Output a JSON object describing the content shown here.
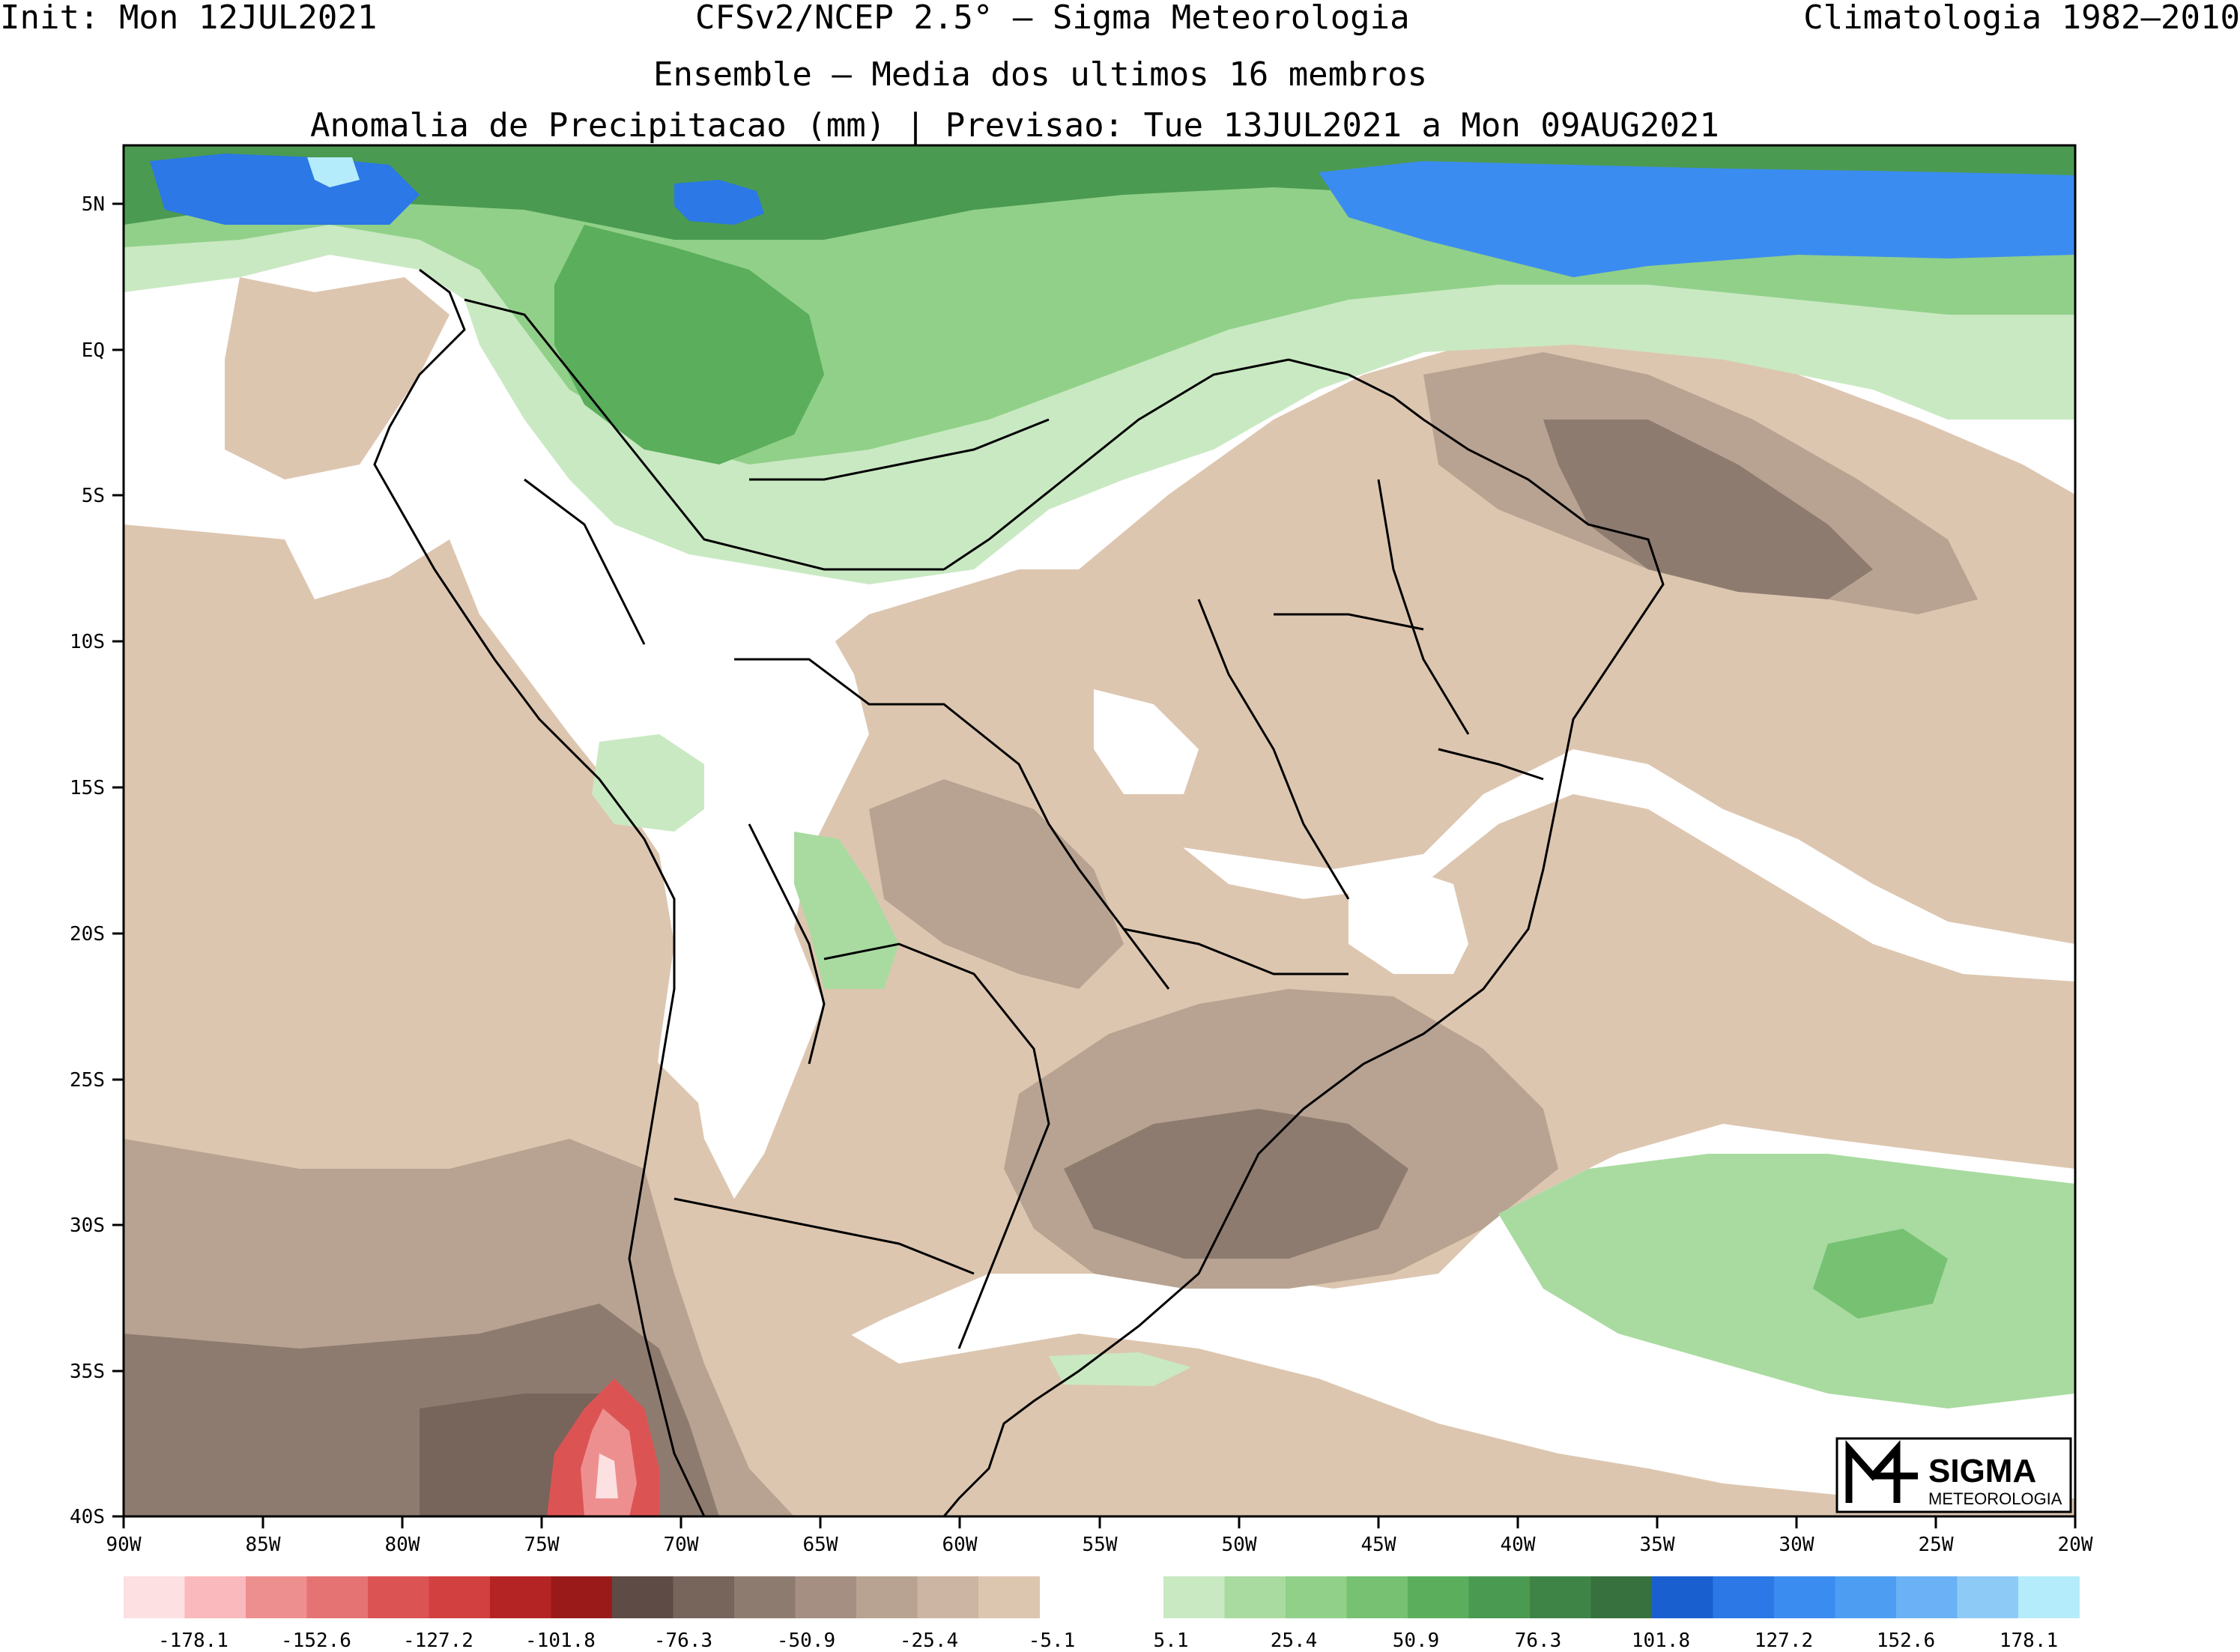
{
  "header": {
    "init": "Init: Mon 12JUL2021",
    "model": "CFSv2/NCEP 2.5° – Sigma Meteorologia",
    "climatology": "Climatologia 1982–2010",
    "ensemble": "Ensemble – Media dos ultimos 16 membros",
    "variable": "Anomalia de Precipitacao (mm) | Previsao: Tue 13JUL2021 a Mon 09AUG2021"
  },
  "axes": {
    "lat_labels": [
      "5N",
      "EQ",
      "5S",
      "10S",
      "15S",
      "20S",
      "25S",
      "30S",
      "35S",
      "40S"
    ],
    "lon_labels": [
      "90W",
      "85W",
      "80W",
      "75W",
      "70W",
      "65W",
      "60W",
      "55W",
      "50W",
      "45W",
      "40W",
      "35W",
      "30W",
      "25W",
      "20W"
    ]
  },
  "colorbar": {
    "negative_colors": [
      "#fde0e2",
      "#f9b9bd",
      "#ee8f8f",
      "#e57373",
      "#dc5353",
      "#d24040",
      "#b52424",
      "#9a1a1a",
      "#5e4b45",
      "#77645b",
      "#8e7b70",
      "#a48f82",
      "#b8a392",
      "#ccb5a2",
      "#ddc6b0"
    ],
    "positive_colors": [
      "#c9e9c2",
      "#a9dba0",
      "#91d089",
      "#76c172",
      "#5aae5c",
      "#4b9a51",
      "#3f8447",
      "#36713e",
      "#1a5fd0",
      "#2b78e6",
      "#3b8cf0",
      "#4d9ef3",
      "#6ab1f5",
      "#8ecaf6",
      "#b5ecfb"
    ],
    "labels": [
      "-178.1",
      "-152.6",
      "-127.2",
      "-101.8",
      "-76.3",
      "-50.9",
      "-25.4",
      "-5.1",
      "5.1",
      "25.4",
      "50.9",
      "76.3",
      "101.8",
      "127.2",
      "152.6",
      "178.1"
    ]
  },
  "logo": {
    "line1": "SIGMA",
    "line2": "METEOROLOGIA"
  }
}
